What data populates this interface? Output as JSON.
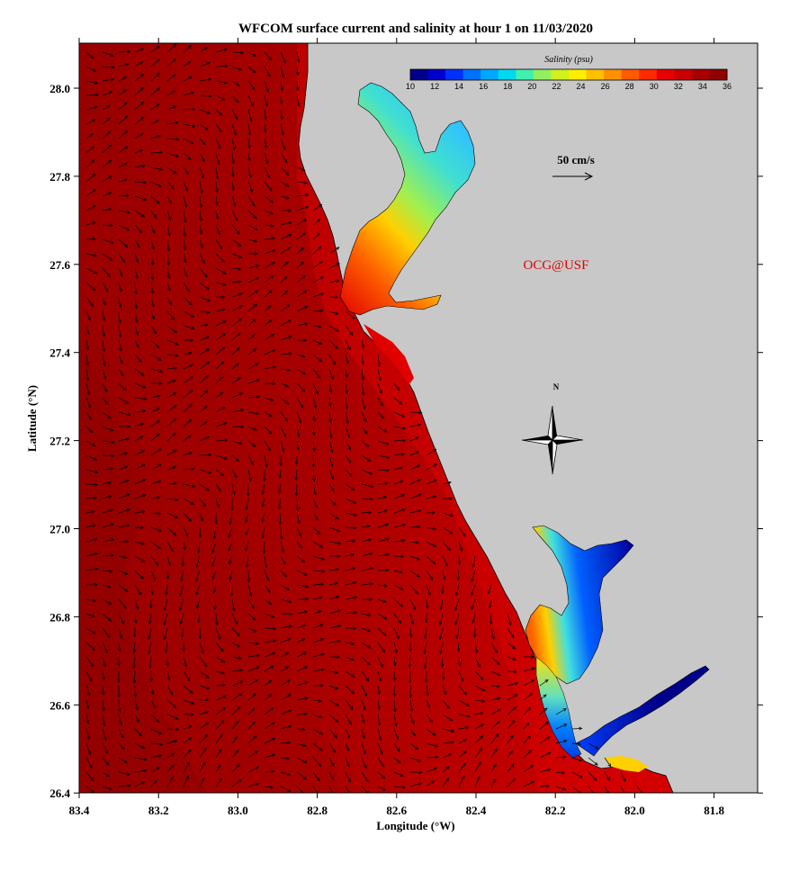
{
  "title": "WFCOM surface current and salinity at hour 1 on 11/03/2020",
  "xlabel": "Longitude (°W)",
  "ylabel": "Latitude (°N)",
  "credit": "OCG@USF",
  "scale_label": "50 cm/s",
  "north_label": "N",
  "colorbar": {
    "title": "Salinity (psu)",
    "min": 10,
    "max": 36,
    "tick_labels": [
      "10",
      "12",
      "14",
      "16",
      "18",
      "20",
      "22",
      "24",
      "26",
      "28",
      "30",
      "32",
      "34",
      "36"
    ],
    "colors": [
      "#00008b",
      "#0000cd",
      "#0030ff",
      "#0070ff",
      "#00a8ff",
      "#00d8f0",
      "#40f0b0",
      "#90f060",
      "#d0f020",
      "#ffee00",
      "#ffc000",
      "#ff9000",
      "#ff5a00",
      "#ff2a00",
      "#e80000",
      "#c80000",
      "#a80000",
      "#900000"
    ]
  },
  "x_ticks": [
    "83.4",
    "83.2",
    "83.0",
    "82.8",
    "82.6",
    "82.4",
    "82.2",
    "82.0",
    "81.8"
  ],
  "y_ticks": [
    "28.0",
    "27.8",
    "27.6",
    "27.4",
    "27.2",
    "27.0",
    "26.8",
    "26.6",
    "26.4"
  ],
  "colors": {
    "land": "#c8c8c8",
    "ocean_deep": "#a00000",
    "ocean_mid": "#c00000",
    "ocean_shelf": "#dd0000"
  }
}
